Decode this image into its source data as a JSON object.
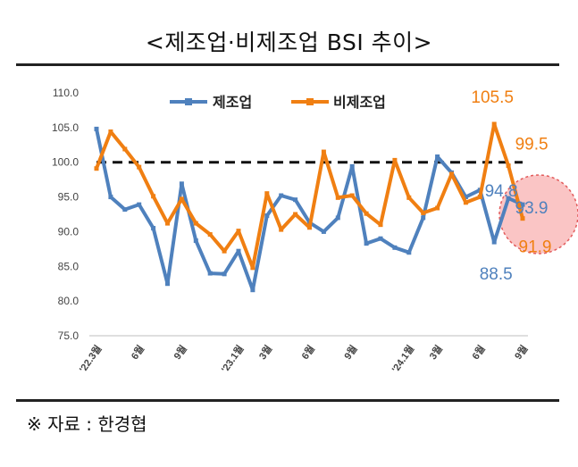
{
  "title": "<제조업·비제조업 BSI 추이>",
  "source": "※ 자료 : 한경협",
  "chart_data": {
    "type": "line",
    "ylim": [
      75,
      110
    ],
    "yticks": [
      "110.0",
      "105.0",
      "100.0",
      "95.0",
      "90.0",
      "85.0",
      "80.0",
      "75.0"
    ],
    "reference_line": 100,
    "xticks": [
      {
        "index": 0,
        "label": "'22.3월"
      },
      {
        "index": 3,
        "label": "6월"
      },
      {
        "index": 6,
        "label": "9월"
      },
      {
        "index": 10,
        "label": "'23.1월"
      },
      {
        "index": 12,
        "label": "3월"
      },
      {
        "index": 15,
        "label": "6월"
      },
      {
        "index": 18,
        "label": "9월"
      },
      {
        "index": 22,
        "label": "'24.1월"
      },
      {
        "index": 24,
        "label": "3월"
      },
      {
        "index": 27,
        "label": "6월"
      },
      {
        "index": 30,
        "label": "9월"
      }
    ],
    "series": [
      {
        "name": "제조업",
        "color": "#4f81bd",
        "values": [
          104.8,
          95.0,
          93.2,
          93.9,
          90.5,
          82.5,
          96.9,
          88.7,
          84.0,
          83.9,
          87.2,
          81.6,
          92.3,
          95.2,
          94.6,
          91.3,
          90.0,
          92.0,
          99.4,
          88.3,
          89.0,
          87.7,
          87.0,
          92.0,
          100.8,
          98.5,
          95.0,
          96.0,
          88.5,
          94.8,
          93.9
        ]
      },
      {
        "name": "비제조업",
        "color": "#f07f12",
        "values": [
          99.1,
          104.4,
          101.9,
          99.3,
          95.1,
          91.2,
          94.7,
          91.2,
          89.6,
          87.2,
          90.1,
          84.8,
          95.5,
          90.3,
          92.5,
          90.6,
          101.5,
          94.9,
          95.2,
          92.6,
          91.0,
          100.3,
          94.9,
          92.7,
          93.4,
          98.3,
          94.2,
          95.0,
          105.5,
          99.5,
          91.9
        ]
      }
    ],
    "data_labels": [
      {
        "series": "비제조업",
        "index": 28,
        "text": "105.5"
      },
      {
        "series": "비제조업",
        "index": 29,
        "text": "99.5"
      },
      {
        "series": "제조업",
        "index": 29,
        "text": "94.8"
      },
      {
        "series": "제조업",
        "index": 30,
        "text": "93.9"
      },
      {
        "series": "제조업",
        "index": 28,
        "text": "88.5"
      },
      {
        "series": "비제조업",
        "index": 30,
        "text": "91.9"
      }
    ],
    "legend": "top"
  }
}
